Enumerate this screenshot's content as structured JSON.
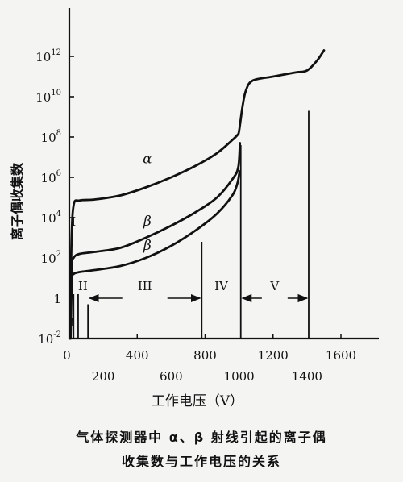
{
  "chart_data": {
    "type": "line",
    "title": "",
    "xlabel": "工作电压（V）",
    "ylabel": "离子偶收集数",
    "y_scale": "log",
    "xlim": [
      0,
      1600
    ],
    "ylim_log10": [
      -2,
      13
    ],
    "grid": false,
    "lower_x_ticks": [
      "0",
      "200",
      "600",
      "1000",
      "1400"
    ],
    "upper_x_ticks": [
      "400",
      "800",
      "1200",
      "1600"
    ],
    "y_ticks": [
      {
        "base": "10",
        "exp": "-2",
        "log10": -2
      },
      {
        "base": "1",
        "exp": "",
        "log10": 0
      },
      {
        "base": "10",
        "exp": "2",
        "log10": 2
      },
      {
        "base": "10",
        "exp": "4",
        "log10": 4
      },
      {
        "base": "10",
        "exp": "6",
        "log10": 6
      },
      {
        "base": "10",
        "exp": "8",
        "log10": 8
      },
      {
        "base": "10",
        "exp": "10",
        "log10": 10
      },
      {
        "base": "10",
        "exp": "12",
        "log10": 12
      }
    ],
    "series": [
      {
        "name": "α",
        "label_at": {
          "x": 460,
          "log10": 6.7
        },
        "points": [
          [
            3,
            -2
          ],
          [
            12,
            2.5
          ],
          [
            25,
            4.6
          ],
          [
            60,
            4.85
          ],
          [
            150,
            4.9
          ],
          [
            300,
            5.1
          ],
          [
            450,
            5.5
          ],
          [
            600,
            6.0
          ],
          [
            750,
            6.6
          ],
          [
            870,
            7.2
          ],
          [
            960,
            7.85
          ],
          [
            990,
            8.1
          ],
          [
            1000,
            8.3
          ],
          [
            1020,
            9.5
          ],
          [
            1040,
            10.3
          ],
          [
            1080,
            10.8
          ],
          [
            1200,
            11.0
          ],
          [
            1330,
            11.2
          ],
          [
            1400,
            11.3
          ],
          [
            1460,
            11.8
          ],
          [
            1500,
            12.3
          ]
        ]
      },
      {
        "name": "β",
        "label_at": {
          "x": 460,
          "log10": 3.6
        },
        "points": [
          [
            5,
            -2
          ],
          [
            14,
            1.5
          ],
          [
            25,
            2.0
          ],
          [
            60,
            2.2
          ],
          [
            150,
            2.3
          ],
          [
            300,
            2.5
          ],
          [
            450,
            3.0
          ],
          [
            600,
            3.6
          ],
          [
            750,
            4.3
          ],
          [
            870,
            5.0
          ],
          [
            960,
            5.9
          ],
          [
            995,
            6.5
          ],
          [
            1005,
            7.7
          ]
        ]
      },
      {
        "name": "β",
        "label_at": {
          "x": 460,
          "log10": 2.4
        },
        "points": [
          [
            8,
            -2
          ],
          [
            15,
            0.9
          ],
          [
            25,
            1.2
          ],
          [
            60,
            1.3
          ],
          [
            150,
            1.4
          ],
          [
            300,
            1.6
          ],
          [
            450,
            2.0
          ],
          [
            600,
            2.6
          ],
          [
            750,
            3.4
          ],
          [
            870,
            4.2
          ],
          [
            960,
            5.1
          ],
          [
            990,
            5.7
          ],
          [
            1003,
            6.3
          ]
        ]
      }
    ],
    "boundaries": [
      {
        "x": 25,
        "log10_top": 0.2
      },
      {
        "x": 52,
        "log10_top": 0.2
      },
      {
        "x": 110,
        "log10_top": -0.3
      },
      {
        "x": 780,
        "log10_top": 2.8
      },
      {
        "x": 1010,
        "log10_top": 7.6
      },
      {
        "x": 1410,
        "log10_top": 9.3
      }
    ],
    "regions": [
      {
        "label": "I",
        "x": 25,
        "log10": 3.8,
        "arrows": false
      },
      {
        "label": "I",
        "x": 20,
        "log10": -1.2,
        "arrows": false
      },
      {
        "label": "II",
        "x": 80,
        "log10": 0.6,
        "arrows": false
      },
      {
        "label": "III",
        "x": 445,
        "log10": 0.6,
        "x_from": 110,
        "x_to": 780,
        "log10_arrow": 0.0,
        "arrows": true
      },
      {
        "label": "IV",
        "x": 895,
        "log10": 0.6,
        "arrows": false
      },
      {
        "label": "V",
        "x": 1210,
        "log10": 0.6,
        "x_from": 1010,
        "x_to": 1410,
        "log10_arrow": 0.0,
        "arrows": true
      }
    ]
  },
  "caption": {
    "line1": "气体探测器中 α、β 射线引起的离子偶",
    "line2": "收集数与工作电压的关系"
  }
}
